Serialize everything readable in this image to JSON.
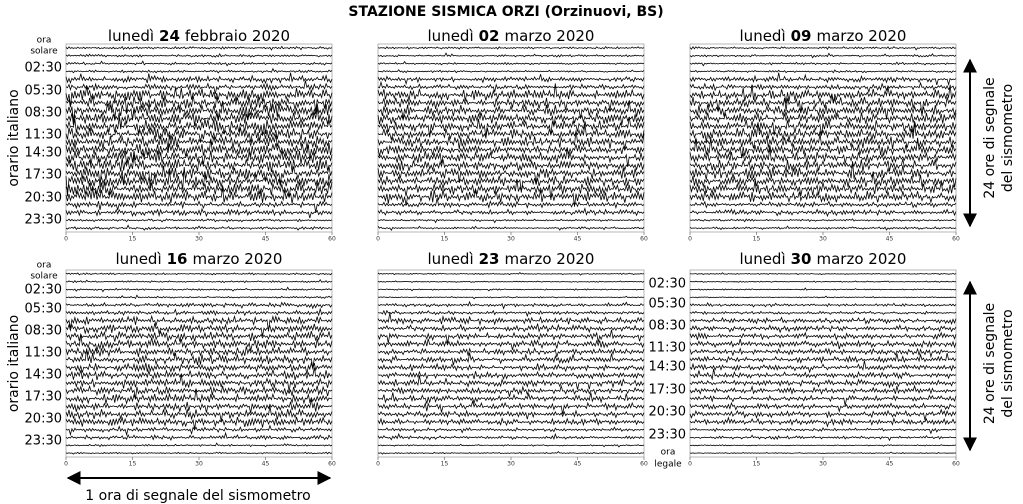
{
  "title": "STAZIONE SISMICA ORZI (Orzinuovi, BS)",
  "panels": [
    {
      "weekday": "lunedì",
      "day": "24",
      "month_year": "febbraio 2020"
    },
    {
      "weekday": "lunedì",
      "day": "02",
      "month_year": "marzo 2020"
    },
    {
      "weekday": "lunedì",
      "day": "09",
      "month_year": "marzo 2020"
    },
    {
      "weekday": "lunedì",
      "day": "16",
      "month_year": "marzo 2020"
    },
    {
      "weekday": "lunedì",
      "day": "23",
      "month_year": "marzo 2020"
    },
    {
      "weekday": "lunedì",
      "day": "30",
      "month_year": "marzo 2020"
    }
  ],
  "time_labels": [
    "02:30",
    "05:30",
    "08:30",
    "11:30",
    "14:30",
    "17:30",
    "20:30",
    "23:30"
  ],
  "solar_time_label": [
    "ora",
    "solare"
  ],
  "legal_time_label": [
    "ora",
    "legale"
  ],
  "y_axis_label": "orario italiano",
  "vertical_arrow_label": [
    "24 ore di segnale",
    "del sismometro"
  ],
  "horizontal_arrow_label": "1 ora di segnale del sismometro",
  "xticks": [
    0,
    15,
    30,
    45,
    60
  ]
}
